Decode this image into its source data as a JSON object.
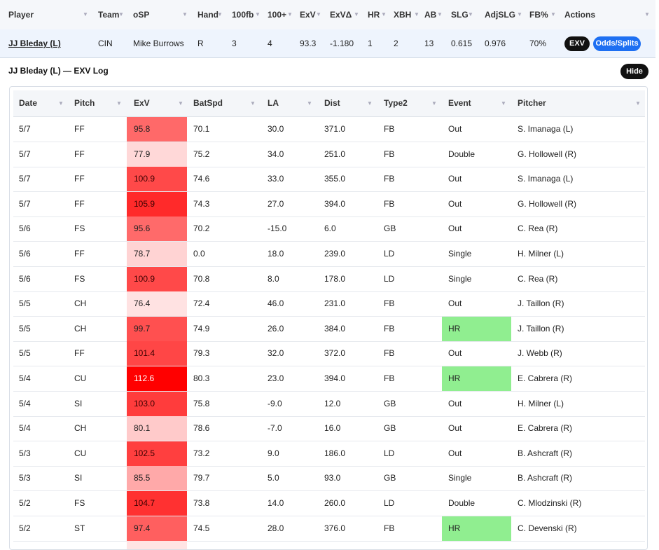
{
  "main_table": {
    "headers": [
      "Player",
      "Team",
      "oSP",
      "Hand",
      "100fb",
      "100+",
      "ExV",
      "ExVΔ",
      "HR",
      "XBH",
      "AB",
      "SLG",
      "AdjSLG",
      "FB%",
      "Actions"
    ],
    "row": {
      "player": "JJ Bleday (L)",
      "team": "CIN",
      "osp": "Mike Burrows",
      "hand": "R",
      "fb100": "3",
      "plus100": "4",
      "exv": "93.3",
      "exv_delta": "-1.180",
      "hr": "1",
      "xbh": "2",
      "ab": "13",
      "slg": "0.615",
      "adjslg": "0.976",
      "fb_pct": "70%",
      "exv_button": "EXV",
      "odds_button": "Odds/Splits"
    },
    "negative_color": "#d41010"
  },
  "log": {
    "title": "JJ Bleday (L) — EXV Log",
    "hide_button": "Hide",
    "headers": [
      "Date",
      "Pitch",
      "ExV",
      "BatSpd",
      "LA",
      "Dist",
      "Type2",
      "Event",
      "Pitcher"
    ],
    "highlight_hr_color": "#90ee90",
    "rows": [
      {
        "date": "5/7",
        "pitch": "FF",
        "exv": "95.8",
        "batspd": "70.1",
        "la": "30.0",
        "dist": "371.0",
        "type2": "FB",
        "event": "Out",
        "pitcher": "S. Imanaga (L)"
      },
      {
        "date": "5/7",
        "pitch": "FF",
        "exv": "77.9",
        "batspd": "75.2",
        "la": "34.0",
        "dist": "251.0",
        "type2": "FB",
        "event": "Double",
        "pitcher": "G. Hollowell (R)"
      },
      {
        "date": "5/7",
        "pitch": "FF",
        "exv": "100.9",
        "batspd": "74.6",
        "la": "33.0",
        "dist": "355.0",
        "type2": "FB",
        "event": "Out",
        "pitcher": "S. Imanaga (L)"
      },
      {
        "date": "5/7",
        "pitch": "FF",
        "exv": "105.9",
        "batspd": "74.3",
        "la": "27.0",
        "dist": "394.0",
        "type2": "FB",
        "event": "Out",
        "pitcher": "G. Hollowell (R)"
      },
      {
        "date": "5/6",
        "pitch": "FS",
        "exv": "95.6",
        "batspd": "70.2",
        "la": "-15.0",
        "dist": "6.0",
        "type2": "GB",
        "event": "Out",
        "pitcher": "C. Rea (R)"
      },
      {
        "date": "5/6",
        "pitch": "FF",
        "exv": "78.7",
        "batspd": "0.0",
        "la": "18.0",
        "dist": "239.0",
        "type2": "LD",
        "event": "Single",
        "pitcher": "H. Milner (L)"
      },
      {
        "date": "5/6",
        "pitch": "FS",
        "exv": "100.9",
        "batspd": "70.8",
        "la": "8.0",
        "dist": "178.0",
        "type2": "LD",
        "event": "Single",
        "pitcher": "C. Rea (R)"
      },
      {
        "date": "5/5",
        "pitch": "CH",
        "exv": "76.4",
        "batspd": "72.4",
        "la": "46.0",
        "dist": "231.0",
        "type2": "FB",
        "event": "Out",
        "pitcher": "J. Taillon (R)"
      },
      {
        "date": "5/5",
        "pitch": "CH",
        "exv": "99.7",
        "batspd": "74.9",
        "la": "26.0",
        "dist": "384.0",
        "type2": "FB",
        "event": "HR",
        "pitcher": "J. Taillon (R)"
      },
      {
        "date": "5/5",
        "pitch": "FF",
        "exv": "101.4",
        "batspd": "79.3",
        "la": "32.0",
        "dist": "372.0",
        "type2": "FB",
        "event": "Out",
        "pitcher": "J. Webb (R)"
      },
      {
        "date": "5/4",
        "pitch": "CU",
        "exv": "112.6",
        "batspd": "80.3",
        "la": "23.0",
        "dist": "394.0",
        "type2": "FB",
        "event": "HR",
        "pitcher": "E. Cabrera (R)"
      },
      {
        "date": "5/4",
        "pitch": "SI",
        "exv": "103.0",
        "batspd": "75.8",
        "la": "-9.0",
        "dist": "12.0",
        "type2": "GB",
        "event": "Out",
        "pitcher": "H. Milner (L)"
      },
      {
        "date": "5/4",
        "pitch": "CH",
        "exv": "80.1",
        "batspd": "78.6",
        "la": "-7.0",
        "dist": "16.0",
        "type2": "GB",
        "event": "Out",
        "pitcher": "E. Cabrera (R)"
      },
      {
        "date": "5/3",
        "pitch": "CU",
        "exv": "102.5",
        "batspd": "73.2",
        "la": "9.0",
        "dist": "186.0",
        "type2": "LD",
        "event": "Out",
        "pitcher": "B. Ashcraft (R)"
      },
      {
        "date": "5/3",
        "pitch": "SI",
        "exv": "85.5",
        "batspd": "79.7",
        "la": "5.0",
        "dist": "93.0",
        "type2": "GB",
        "event": "Single",
        "pitcher": "B. Ashcraft (R)"
      },
      {
        "date": "5/2",
        "pitch": "FS",
        "exv": "104.7",
        "batspd": "73.8",
        "la": "14.0",
        "dist": "260.0",
        "type2": "LD",
        "event": "Double",
        "pitcher": "C. Mlodzinski (R)"
      },
      {
        "date": "5/2",
        "pitch": "ST",
        "exv": "97.4",
        "batspd": "74.5",
        "la": "28.0",
        "dist": "376.0",
        "type2": "FB",
        "event": "HR",
        "pitcher": "C. Devenski (R)"
      }
    ]
  }
}
